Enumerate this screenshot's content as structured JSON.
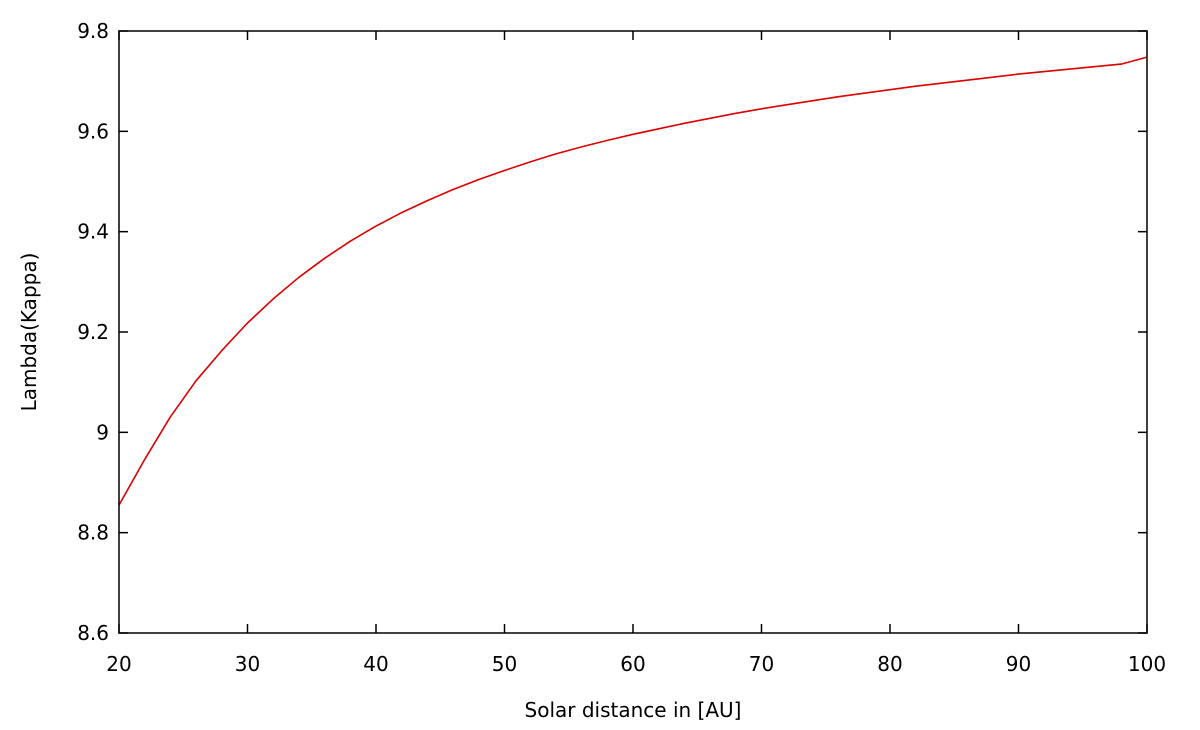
{
  "chart_data": {
    "type": "line",
    "title": "",
    "xlabel": "Solar distance in [AU]",
    "ylabel": "Lambda(Kappa)",
    "xlim": [
      20,
      100
    ],
    "ylim": [
      8.6,
      9.8
    ],
    "xticks": [
      20,
      30,
      40,
      50,
      60,
      70,
      80,
      90,
      100
    ],
    "xtick_labels": [
      "20",
      "30",
      "40",
      "50",
      "60",
      "70",
      "80",
      "90",
      "100"
    ],
    "yticks": [
      8.6,
      8.8,
      9.0,
      9.2,
      9.4,
      9.6,
      9.8
    ],
    "ytick_labels": [
      "8.6",
      "8.8",
      "9",
      "9.2",
      "9.4",
      "9.6",
      "9.8"
    ],
    "grid": false,
    "legend": "none",
    "series": [
      {
        "color": "#dd0000",
        "x": [
          20,
          22,
          24,
          26,
          28,
          30,
          32,
          34,
          36,
          38,
          40,
          42,
          44,
          46,
          48,
          50,
          52,
          54,
          56,
          58,
          60,
          62,
          64,
          66,
          68,
          70,
          72,
          74,
          76,
          78,
          80,
          82,
          84,
          86,
          88,
          90,
          92,
          94,
          96,
          98,
          100
        ],
        "y": [
          8.855,
          8.946,
          9.031,
          9.103,
          9.163,
          9.218,
          9.266,
          9.309,
          9.347,
          9.381,
          9.411,
          9.438,
          9.462,
          9.484,
          9.504,
          9.522,
          9.539,
          9.555,
          9.569,
          9.582,
          9.594,
          9.605,
          9.616,
          9.626,
          9.636,
          9.645,
          9.653,
          9.661,
          9.669,
          9.676,
          9.683,
          9.69,
          9.696,
          9.702,
          9.708,
          9.714,
          9.719,
          9.724,
          9.729,
          9.734,
          9.748
        ]
      }
    ]
  }
}
